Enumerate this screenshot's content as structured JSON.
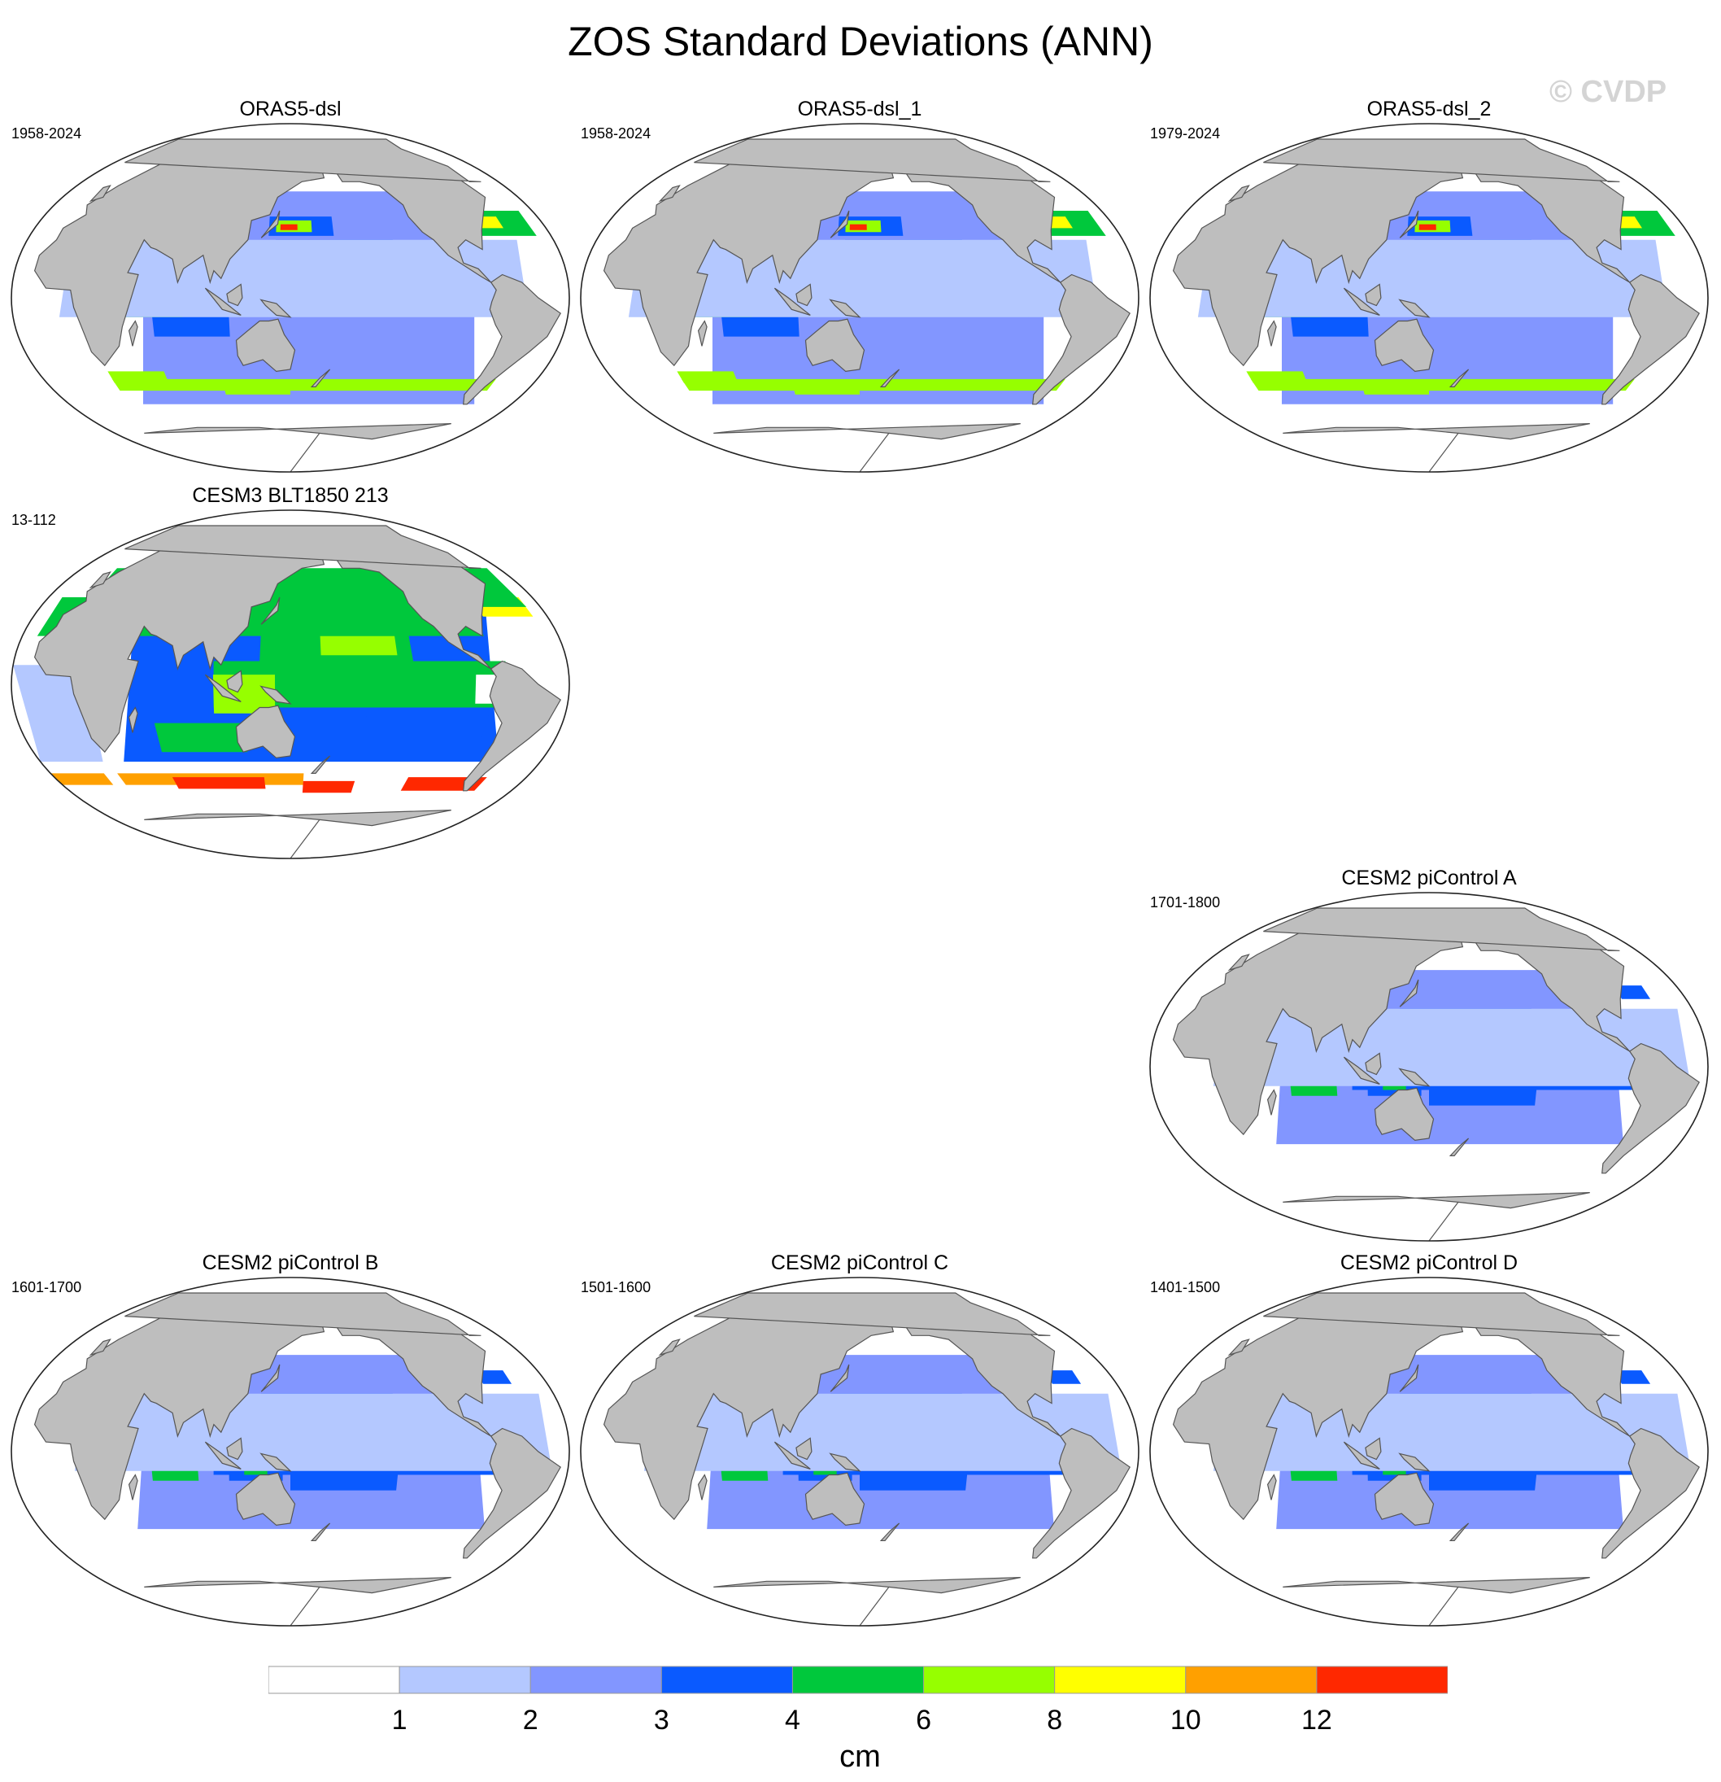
{
  "figure": {
    "title": "ZOS Standard Deviations (ANN)",
    "watermark": "© CVDP"
  },
  "panels": [
    {
      "name": "ORAS5-dsl",
      "years": "1958-2024",
      "style": "oras"
    },
    {
      "name": "ORAS5-dsl_1",
      "years": "1958-2024",
      "style": "oras"
    },
    {
      "name": "ORAS5-dsl_2",
      "years": "1979-2024",
      "style": "oras"
    },
    {
      "name": "CESM3 BLT1850 213",
      "years": "13-112",
      "style": "cesm3"
    },
    {
      "name": "CESM2 piControl A",
      "years": "1701-1800",
      "style": "cesm2"
    },
    {
      "name": "CESM2 piControl B",
      "years": "1601-1700",
      "style": "cesm2"
    },
    {
      "name": "CESM2 piControl C",
      "years": "1501-1600",
      "style": "cesm2"
    },
    {
      "name": "CESM2 piControl D",
      "years": "1401-1500",
      "style": "cesm2"
    }
  ],
  "colorbar": {
    "units": "cm",
    "labels": [
      "1",
      "2",
      "3",
      "4",
      "6",
      "8",
      "10",
      "12"
    ],
    "colors": [
      "#ffffff",
      "#b4c8ff",
      "#8296ff",
      "#0a5aff",
      "#00c83c",
      "#96ff00",
      "#ffff00",
      "#ffa000",
      "#ff2800"
    ]
  },
  "colors": {
    "land": "#bebebe",
    "coast": "#555555"
  }
}
